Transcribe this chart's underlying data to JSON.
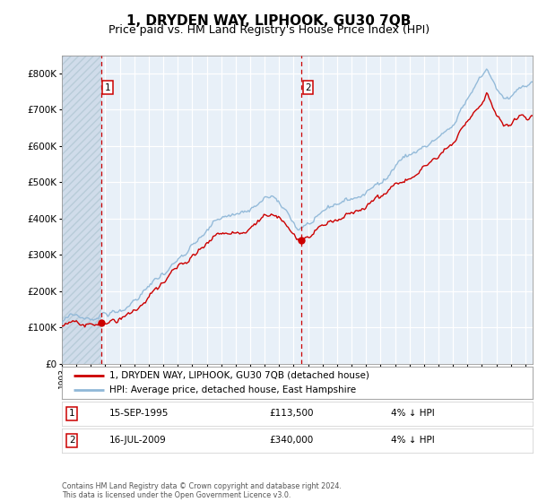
{
  "title": "1, DRYDEN WAY, LIPHOOK, GU30 7QB",
  "subtitle": "Price paid vs. HM Land Registry's House Price Index (HPI)",
  "legend_red": "1, DRYDEN WAY, LIPHOOK, GU30 7QB (detached house)",
  "legend_blue": "HPI: Average price, detached house, East Hampshire",
  "sale1_label": "15-SEP-1995",
  "sale1_price": 113500,
  "sale1_price_str": "£113,500",
  "sale1_hpi": "4% ↓ HPI",
  "sale1_x": 1995.708,
  "sale2_label": "16-JUL-2009",
  "sale2_price": 340000,
  "sale2_price_str": "£340,000",
  "sale2_hpi": "4% ↓ HPI",
  "sale2_x": 2009.542,
  "xmin": 1993.0,
  "xmax": 2025.5,
  "ymin": 0,
  "ymax": 850000,
  "yticks": [
    0,
    100000,
    200000,
    300000,
    400000,
    500000,
    600000,
    700000,
    800000
  ],
  "ytick_labels": [
    "£0",
    "£100K",
    "£200K",
    "£300K",
    "£400K",
    "£500K",
    "£600K",
    "£700K",
    "£800K"
  ],
  "bg_color": "#e8f0f8",
  "hatch_bg": "#d0dcea",
  "grid_color": "#ffffff",
  "red_color": "#cc0000",
  "blue_color": "#90b8d8",
  "footnote": "Contains HM Land Registry data © Crown copyright and database right 2024.\nThis data is licensed under the Open Government Licence v3.0.",
  "title_fontsize": 11,
  "subtitle_fontsize": 9
}
